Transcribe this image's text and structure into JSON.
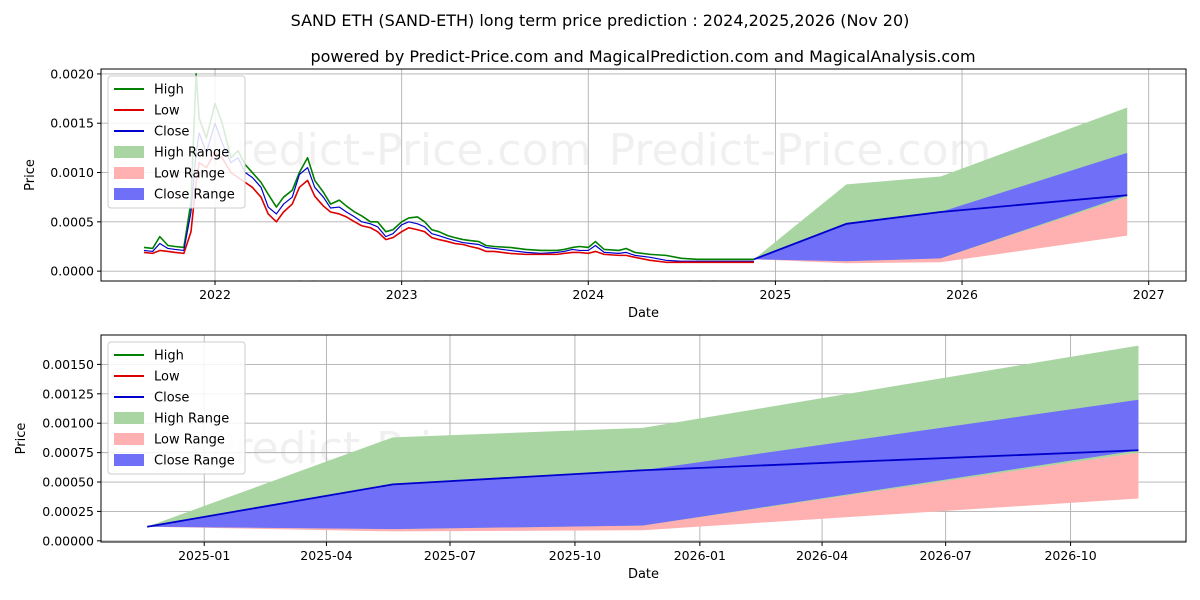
{
  "title": "SAND ETH (SAND-ETH) long term price prediction : 2024,2025,2026 (Nov 20)",
  "subtitle": "powered by Predict-Price.com and MagicalPrediction.com and MagicalAnalysis.com",
  "watermark": "Predict-Price.com",
  "colors": {
    "high": "#008000",
    "low": "#dd0000",
    "close": "#0000cc",
    "high_range": "#a8d5a2",
    "low_range": "#ffb0b0",
    "close_range": "#6f6ff7"
  },
  "legend": [
    "High",
    "Low",
    "Close",
    "High Range",
    "Low Range",
    "Close Range"
  ],
  "chart_data": [
    {
      "type": "line",
      "panel": "full-history",
      "xlabel": "Date",
      "ylabel": "Price",
      "xlim": [
        "2021-05-23",
        "2027-03-15"
      ],
      "ylim": [
        -0.0001,
        0.00205
      ],
      "x_ticks": [
        "2022",
        "2023",
        "2024",
        "2025",
        "2026",
        "2027"
      ],
      "y_ticks": [
        "0.0000",
        "0.0005",
        "0.0010",
        "0.0015",
        "0.0020"
      ],
      "legend_position": "top-left",
      "grid": true,
      "history": {
        "x": [
          "2021-08-15",
          "2021-09-01",
          "2021-09-15",
          "2021-10-01",
          "2021-10-15",
          "2021-11-01",
          "2021-11-15",
          "2021-11-25",
          "2021-12-01",
          "2021-12-15",
          "2022-01-01",
          "2022-01-15",
          "2022-02-01",
          "2022-02-15",
          "2022-03-01",
          "2022-03-15",
          "2022-04-01",
          "2022-04-15",
          "2022-05-01",
          "2022-05-15",
          "2022-06-01",
          "2022-06-15",
          "2022-07-01",
          "2022-07-15",
          "2022-08-01",
          "2022-08-15",
          "2022-09-01",
          "2022-09-15",
          "2022-10-01",
          "2022-10-15",
          "2022-11-01",
          "2022-11-15",
          "2022-12-01",
          "2022-12-15",
          "2023-01-01",
          "2023-01-15",
          "2023-02-01",
          "2023-02-15",
          "2023-03-01",
          "2023-03-15",
          "2023-04-01",
          "2023-04-15",
          "2023-05-01",
          "2023-05-15",
          "2023-06-01",
          "2023-06-15",
          "2023-07-01",
          "2023-08-01",
          "2023-09-01",
          "2023-10-01",
          "2023-11-01",
          "2023-11-15",
          "2023-12-01",
          "2023-12-15",
          "2024-01-01",
          "2024-01-15",
          "2024-02-01",
          "2024-03-01",
          "2024-03-15",
          "2024-04-01",
          "2024-05-01",
          "2024-06-01",
          "2024-07-01",
          "2024-08-01",
          "2024-09-01",
          "2024-10-01",
          "2024-11-01",
          "2024-11-20"
        ],
        "high": [
          0.00024,
          0.00023,
          0.00035,
          0.00026,
          0.00025,
          0.00024,
          0.0007,
          0.002,
          0.00155,
          0.00135,
          0.0017,
          0.0015,
          0.00115,
          0.00122,
          0.00108,
          0.001,
          0.0009,
          0.00078,
          0.00065,
          0.00075,
          0.00082,
          0.001,
          0.00115,
          0.00092,
          0.0008,
          0.00068,
          0.00072,
          0.00066,
          0.0006,
          0.00056,
          0.0005,
          0.0005,
          0.0004,
          0.00042,
          0.0005,
          0.00054,
          0.00055,
          0.0005,
          0.00042,
          0.0004,
          0.00036,
          0.00034,
          0.00032,
          0.00031,
          0.0003,
          0.00026,
          0.00025,
          0.00024,
          0.00022,
          0.00021,
          0.00021,
          0.00022,
          0.00024,
          0.00025,
          0.00024,
          0.0003,
          0.00022,
          0.00021,
          0.00023,
          0.00019,
          0.00017,
          0.00016,
          0.00013,
          0.00012,
          0.00012,
          0.00012,
          0.00012,
          0.00012
        ],
        "low": [
          0.00019,
          0.00018,
          0.00021,
          0.0002,
          0.00019,
          0.00018,
          0.0004,
          0.0009,
          0.0011,
          0.00105,
          0.0012,
          0.00115,
          0.001,
          0.00095,
          0.0009,
          0.00085,
          0.00075,
          0.00058,
          0.0005,
          0.0006,
          0.00068,
          0.00085,
          0.00092,
          0.00076,
          0.00066,
          0.0006,
          0.00058,
          0.00055,
          0.0005,
          0.00046,
          0.00044,
          0.0004,
          0.00032,
          0.00034,
          0.0004,
          0.00044,
          0.00042,
          0.0004,
          0.00034,
          0.00032,
          0.0003,
          0.00028,
          0.00027,
          0.00025,
          0.00023,
          0.0002,
          0.0002,
          0.00018,
          0.00017,
          0.00017,
          0.00017,
          0.00018,
          0.00019,
          0.00019,
          0.00018,
          0.0002,
          0.00017,
          0.00016,
          0.00016,
          0.00014,
          0.00011,
          9e-05,
          9e-05,
          9e-05,
          9e-05,
          9e-05,
          9e-05,
          9e-05
        ],
        "close": [
          0.00021,
          0.0002,
          0.00028,
          0.00023,
          0.00022,
          0.00021,
          0.0006,
          0.0012,
          0.0014,
          0.0012,
          0.0015,
          0.0013,
          0.0011,
          0.00115,
          0.001,
          0.00095,
          0.00085,
          0.00065,
          0.00058,
          0.00068,
          0.00075,
          0.00098,
          0.00105,
          0.00085,
          0.00075,
          0.00064,
          0.00065,
          0.0006,
          0.00055,
          0.0005,
          0.00048,
          0.00045,
          0.00035,
          0.00038,
          0.00047,
          0.0005,
          0.00048,
          0.00045,
          0.00038,
          0.00036,
          0.00033,
          0.00031,
          0.00029,
          0.00028,
          0.00027,
          0.00024,
          0.00023,
          0.00021,
          0.00019,
          0.00018,
          0.00019,
          0.0002,
          0.00022,
          0.00021,
          0.00021,
          0.00026,
          0.00019,
          0.00018,
          0.00019,
          0.00016,
          0.00014,
          0.00011,
          0.0001,
          0.0001,
          0.0001,
          0.0001,
          0.0001,
          0.0001
        ]
      },
      "forecast": {
        "x": [
          "2024-11-20",
          "2025-05-20",
          "2025-11-20",
          "2026-11-20"
        ],
        "close": [
          0.00012,
          0.00048,
          0.0006,
          0.00077
        ],
        "high_range": [
          [
            0.00012,
            0.00012
          ],
          [
            0.0001,
            0.00088
          ],
          [
            0.00012,
            0.00096
          ],
          [
            0.00075,
            0.00166
          ]
        ],
        "low_range": [
          [
            0.00012,
            0.00012
          ],
          [
            8e-05,
            0.0001
          ],
          [
            9e-05,
            0.00013
          ],
          [
            0.00036,
            0.00075
          ]
        ],
        "close_range": [
          [
            0.00012,
            0.00012
          ],
          [
            0.0001,
            0.00048
          ],
          [
            0.00013,
            0.0006
          ],
          [
            0.00077,
            0.0012
          ]
        ]
      }
    },
    {
      "type": "area",
      "panel": "forecast-zoom",
      "xlabel": "Date",
      "ylabel": "Price",
      "xlim": [
        "2024-10-17",
        "2026-12-25"
      ],
      "ylim": [
        -1e-05,
        0.00175
      ],
      "x_ticks": [
        "2025-01",
        "2025-04",
        "2025-07",
        "2025-10",
        "2026-01",
        "2026-04",
        "2026-07",
        "2026-10"
      ],
      "y_ticks": [
        "0.00000",
        "0.00025",
        "0.00050",
        "0.00075",
        "0.00100",
        "0.00125",
        "0.00150"
      ],
      "legend_position": "top-left",
      "grid": true,
      "forecast": {
        "x": [
          "2024-11-20",
          "2025-05-20",
          "2025-11-20",
          "2026-11-20"
        ],
        "close": [
          0.00012,
          0.00048,
          0.0006,
          0.00077
        ],
        "high_range": [
          [
            0.00012,
            0.00012
          ],
          [
            0.0001,
            0.00088
          ],
          [
            0.00012,
            0.00096
          ],
          [
            0.00075,
            0.00166
          ]
        ],
        "low_range": [
          [
            0.00012,
            0.00012
          ],
          [
            8e-05,
            0.0001
          ],
          [
            9e-05,
            0.00013
          ],
          [
            0.00036,
            0.00075
          ]
        ],
        "close_range": [
          [
            0.00012,
            0.00012
          ],
          [
            0.0001,
            0.00048
          ],
          [
            0.00013,
            0.0006
          ],
          [
            0.00077,
            0.0012
          ]
        ]
      }
    }
  ]
}
